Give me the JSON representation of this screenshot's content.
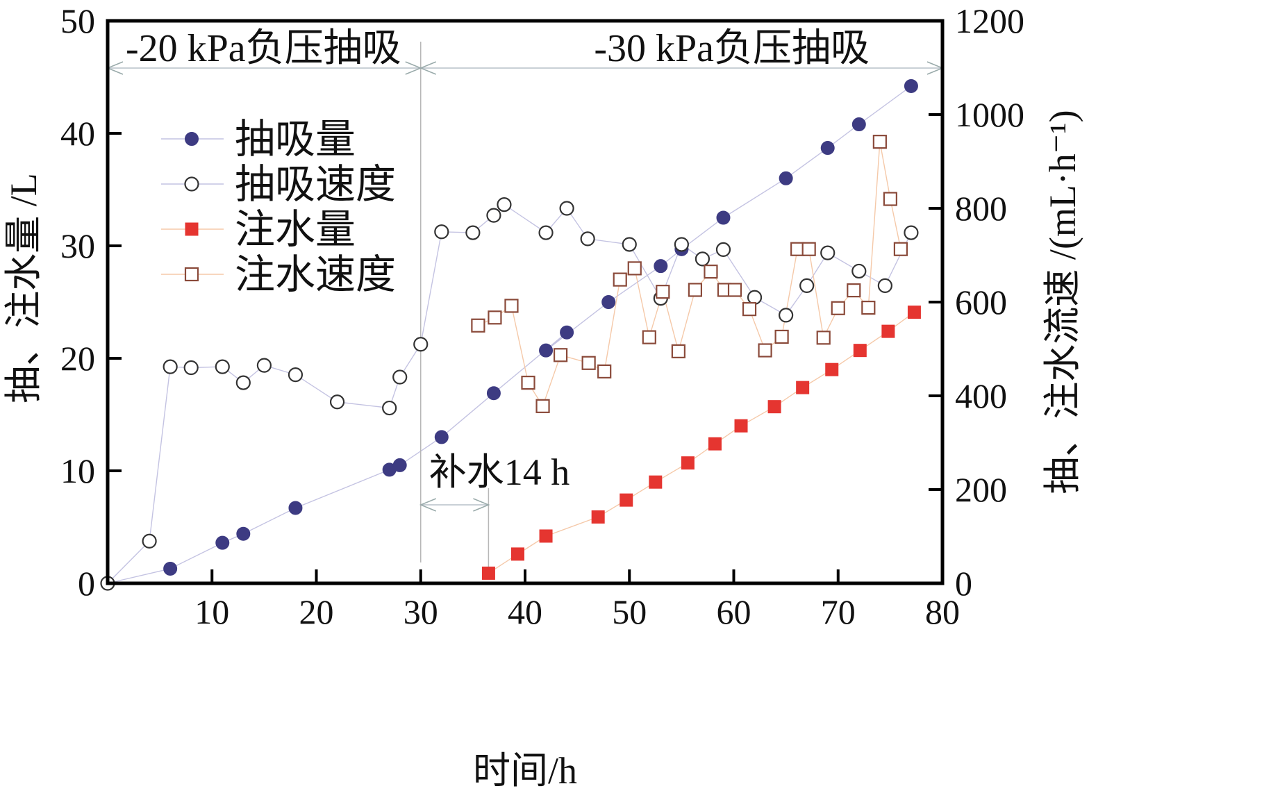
{
  "chart_data": {
    "type": "scatter",
    "xlabel": "时间/h",
    "ylabel": "抽、注水量 /L",
    "y2label": "抽、注水流速 /(mL·h⁻¹)",
    "xlim": [
      0,
      80
    ],
    "ylim": [
      0,
      50
    ],
    "y2lim": [
      0,
      1200
    ],
    "x_ticks": [
      10,
      20,
      30,
      40,
      50,
      60,
      70,
      80
    ],
    "y_ticks": [
      0,
      10,
      20,
      30,
      40,
      50
    ],
    "y2_ticks": [
      0,
      200,
      400,
      600,
      800,
      1000,
      1200
    ],
    "grid": false,
    "legend_position": "upper-left",
    "regions": [
      {
        "label": "-20 kPa负压抽吸",
        "x_start": 0,
        "x_end": 30
      },
      {
        "label": "-30 kPa负压抽吸",
        "x_start": 30,
        "x_end": 80
      }
    ],
    "annotations": [
      {
        "label": "补水14 h",
        "x_start": 30,
        "x_end": 36.5
      }
    ],
    "series": [
      {
        "name": "抽吸量",
        "axis": "left",
        "marker": "filled-circle",
        "color": "#3d3b82",
        "line_color": "#c4c3e2",
        "points": [
          [
            0,
            0
          ],
          [
            6,
            1.3
          ],
          [
            11,
            3.6
          ],
          [
            13,
            4.4
          ],
          [
            18,
            6.7
          ],
          [
            27,
            10.1
          ],
          [
            28,
            10.5
          ],
          [
            32,
            13.0
          ],
          [
            37,
            16.9
          ],
          [
            44,
            22.3
          ],
          [
            42,
            20.7
          ],
          [
            48,
            25.0
          ],
          [
            53,
            28.2
          ],
          [
            55,
            29.7
          ],
          [
            59,
            32.5
          ],
          [
            65,
            36.0
          ],
          [
            69,
            38.7
          ],
          [
            72,
            40.8
          ],
          [
            77,
            44.2
          ]
        ]
      },
      {
        "name": "抽吸速度",
        "axis": "right",
        "marker": "open-circle",
        "color": "#333333",
        "line_color": "#c4c3e2",
        "points": [
          [
            0,
            0
          ],
          [
            4,
            90
          ],
          [
            6,
            462
          ],
          [
            8,
            460
          ],
          [
            11,
            462
          ],
          [
            13,
            428
          ],
          [
            15,
            465
          ],
          [
            18,
            445
          ],
          [
            22,
            387
          ],
          [
            27,
            374
          ],
          [
            28,
            440
          ],
          [
            30,
            510
          ],
          [
            32,
            750
          ],
          [
            35,
            748
          ],
          [
            37,
            785
          ],
          [
            38,
            808
          ],
          [
            42,
            748
          ],
          [
            44,
            800
          ],
          [
            46,
            735
          ],
          [
            50,
            723
          ],
          [
            53,
            608
          ],
          [
            55,
            723
          ],
          [
            57,
            692
          ],
          [
            59,
            712
          ],
          [
            62,
            610
          ],
          [
            65,
            572
          ],
          [
            67,
            635
          ],
          [
            69,
            705
          ],
          [
            72,
            666
          ],
          [
            74.5,
            635
          ],
          [
            77,
            748
          ]
        ]
      },
      {
        "name": "注水量",
        "axis": "left",
        "marker": "filled-square",
        "color": "#e53530",
        "line_color": "#f5c9a9",
        "points": [
          [
            36.5,
            0.9
          ],
          [
            39.3,
            2.6
          ],
          [
            42,
            4.2
          ],
          [
            47,
            5.9
          ],
          [
            49.7,
            7.4
          ],
          [
            52.5,
            9.0
          ],
          [
            55.6,
            10.7
          ],
          [
            58.2,
            12.4
          ],
          [
            60.7,
            14.0
          ],
          [
            63.9,
            15.7
          ],
          [
            66.6,
            17.4
          ],
          [
            69.4,
            19.0
          ],
          [
            72.1,
            20.7
          ],
          [
            74.8,
            22.4
          ],
          [
            77.3,
            24.1
          ]
        ]
      },
      {
        "name": "注水速度",
        "axis": "right",
        "marker": "open-square",
        "color": "#8a4a3a",
        "line_color": "#f5c9a9",
        "points": [
          [
            35.5,
            550
          ],
          [
            37.1,
            567
          ],
          [
            38.7,
            592
          ],
          [
            40.3,
            428
          ],
          [
            41.7,
            378
          ],
          [
            43.4,
            487
          ],
          [
            46.1,
            470
          ],
          [
            47.6,
            452
          ],
          [
            49.1,
            648
          ],
          [
            50.5,
            672
          ],
          [
            51.9,
            525
          ],
          [
            53.2,
            622
          ],
          [
            54.7,
            495
          ],
          [
            56.3,
            626
          ],
          [
            57.8,
            665
          ],
          [
            59.1,
            626
          ],
          [
            60.1,
            626
          ],
          [
            61.5,
            585
          ],
          [
            63.0,
            497
          ],
          [
            64.6,
            526
          ],
          [
            66.1,
            713
          ],
          [
            67.2,
            713
          ],
          [
            68.6,
            524
          ],
          [
            70.0,
            587
          ],
          [
            71.5,
            625
          ],
          [
            72.9,
            588
          ],
          [
            74.0,
            942
          ],
          [
            75.0,
            820
          ],
          [
            76.0,
            713
          ]
        ]
      }
    ]
  }
}
